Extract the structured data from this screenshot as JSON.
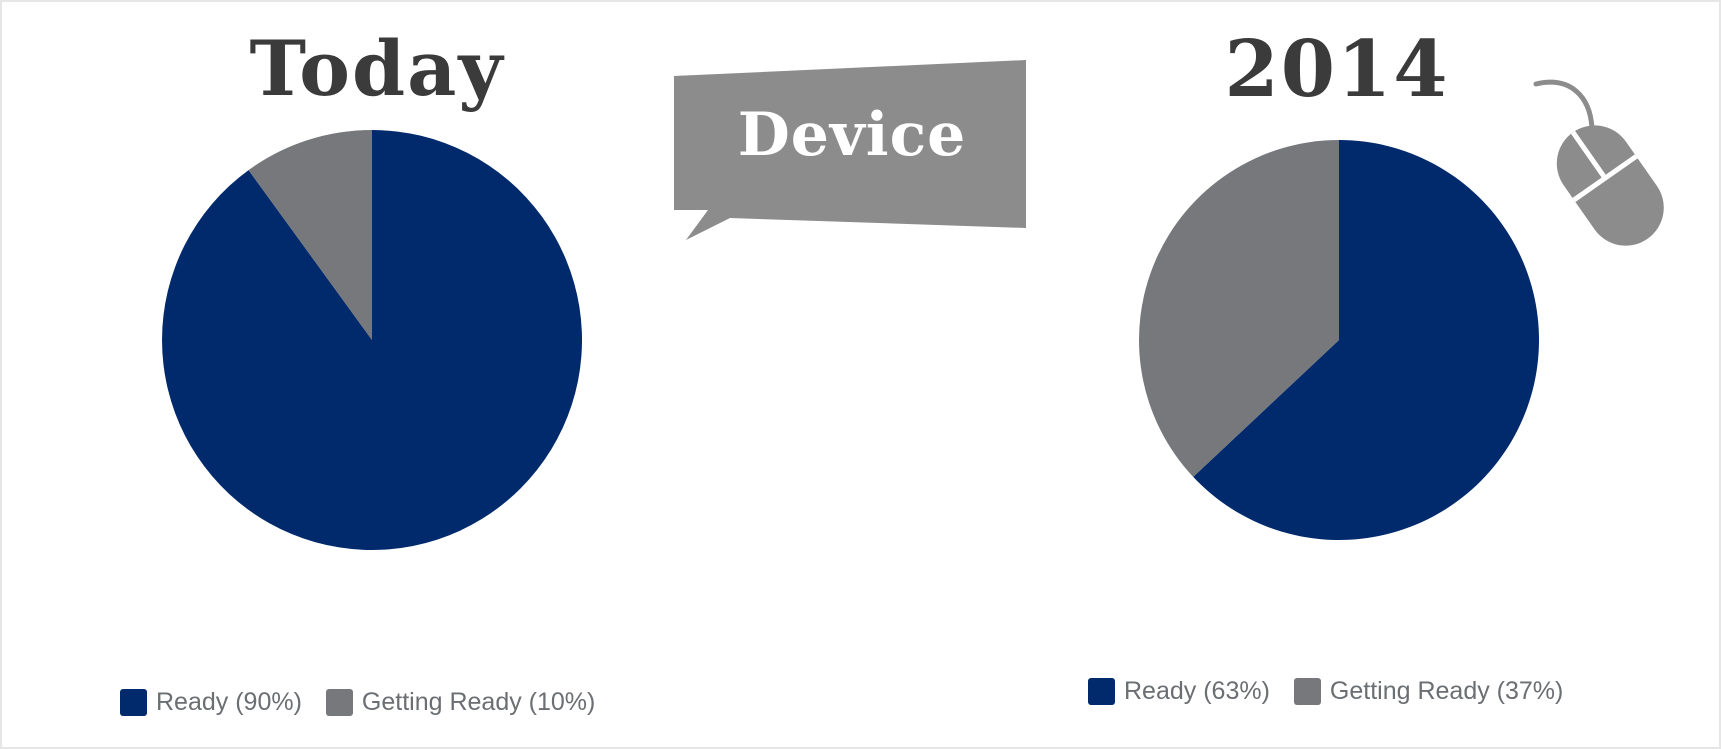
{
  "bubble": {
    "text": "Device"
  },
  "icons": {
    "mouse": "computer-mouse-icon"
  },
  "colors": {
    "ready": "#012a6c",
    "getting_ready": "#76787b",
    "bubble": "#8c8c8c",
    "title": "#3b3b3b"
  },
  "chart_data": [
    {
      "type": "pie",
      "title": "Today",
      "categories": [
        "Ready",
        "Getting Ready"
      ],
      "values": [
        90,
        10
      ],
      "legend": [
        "Ready (90%)",
        "Getting Ready (10%)"
      ],
      "legend_position": "bottom"
    },
    {
      "type": "pie",
      "title": "2014",
      "categories": [
        "Ready",
        "Getting Ready"
      ],
      "values": [
        63,
        37
      ],
      "legend": [
        "Ready (63%)",
        "Getting Ready (37%)"
      ],
      "legend_position": "bottom"
    }
  ]
}
